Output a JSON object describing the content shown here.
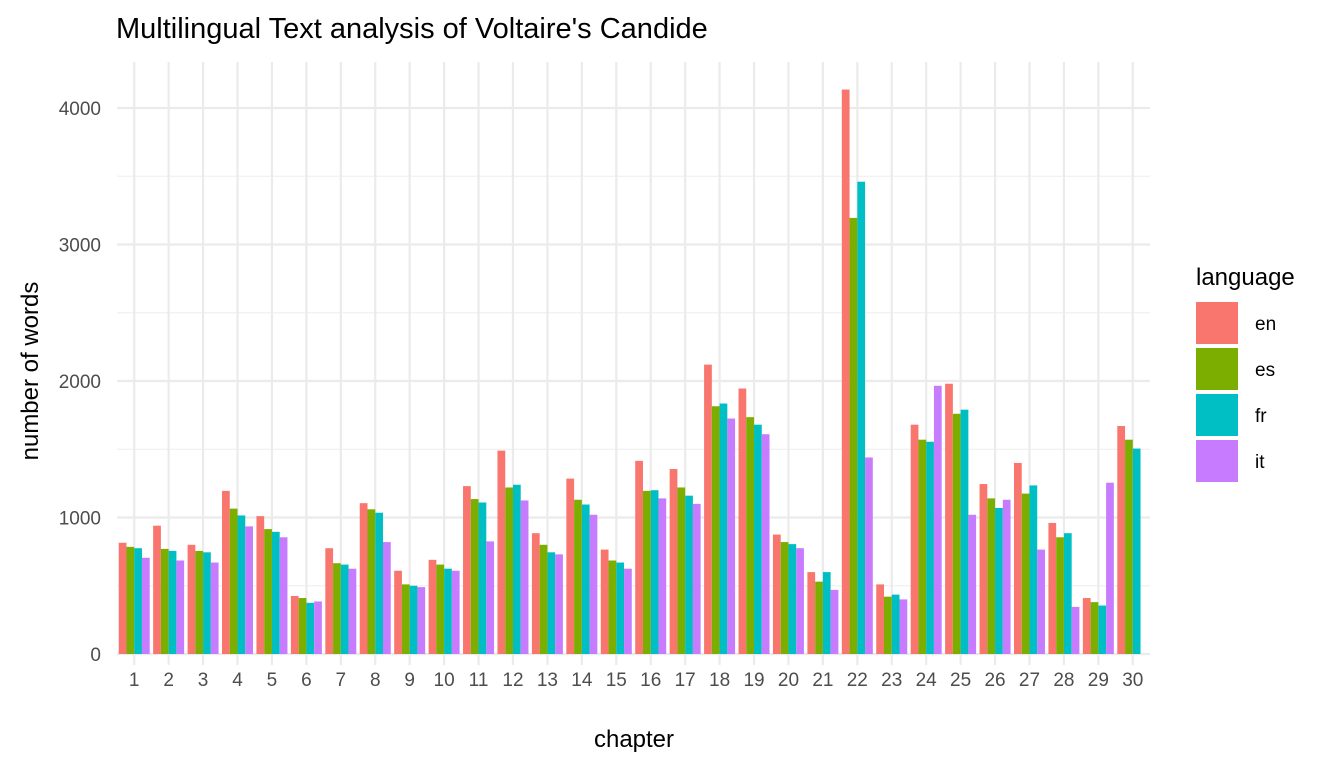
{
  "chart_data": {
    "type": "bar",
    "title": "Multilingual Text analysis of Voltaire's Candide",
    "xlabel": "chapter",
    "ylabel": "number of words",
    "ylim": [
      0,
      4150
    ],
    "y_ticks": [
      0,
      1000,
      2000,
      3000,
      4000
    ],
    "grid": true,
    "legend_title": "language",
    "legend_position": "right",
    "categories": [
      "1",
      "2",
      "3",
      "4",
      "5",
      "6",
      "7",
      "8",
      "9",
      "10",
      "11",
      "12",
      "13",
      "14",
      "15",
      "16",
      "17",
      "18",
      "19",
      "20",
      "21",
      "22",
      "23",
      "24",
      "25",
      "26",
      "27",
      "28",
      "29",
      "30"
    ],
    "series": [
      {
        "name": "en",
        "color": "#F8766D",
        "values": [
          815,
          940,
          800,
          1195,
          1010,
          425,
          775,
          1105,
          610,
          690,
          1230,
          1490,
          885,
          1285,
          765,
          1415,
          1355,
          2120,
          1945,
          875,
          600,
          4135,
          510,
          1680,
          1980,
          1245,
          1400,
          960,
          410,
          1670
        ]
      },
      {
        "name": "es",
        "color": "#7CAE00",
        "values": [
          785,
          770,
          755,
          1065,
          915,
          410,
          665,
          1060,
          510,
          655,
          1135,
          1220,
          800,
          1130,
          685,
          1195,
          1220,
          1815,
          1735,
          820,
          530,
          3195,
          420,
          1570,
          1760,
          1140,
          1175,
          855,
          380,
          1570
        ]
      },
      {
        "name": "fr",
        "color": "#00BFC4",
        "values": [
          775,
          755,
          745,
          1015,
          895,
          375,
          655,
          1035,
          500,
          625,
          1110,
          1240,
          745,
          1095,
          670,
          1200,
          1160,
          1835,
          1680,
          805,
          600,
          3460,
          435,
          1555,
          1790,
          1070,
          1235,
          885,
          355,
          1505
        ]
      },
      {
        "name": "it",
        "color": "#C77CFF",
        "values": [
          705,
          685,
          670,
          935,
          855,
          385,
          625,
          820,
          490,
          610,
          825,
          1125,
          730,
          1020,
          625,
          1140,
          1100,
          1725,
          1610,
          775,
          470,
          1440,
          400,
          1965,
          1020,
          1130,
          765,
          345,
          1255,
          null
        ]
      }
    ]
  }
}
